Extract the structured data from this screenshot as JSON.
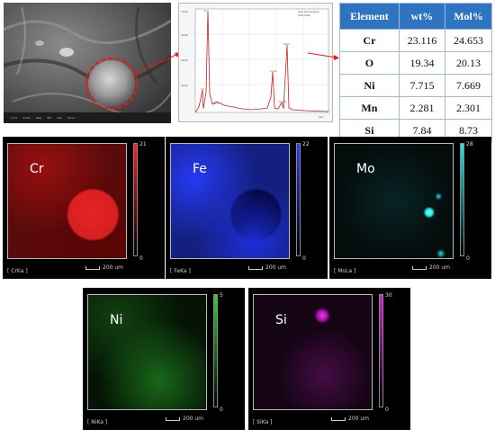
{
  "spectrum": {
    "legend": [
      "Rectangle1",
      "Peak"
    ],
    "y_ticks": [
      "7000",
      "6000",
      "4000",
      "2000",
      "1000"
    ],
    "peaks": [
      "Si",
      "CrL",
      "OKa",
      "CrKa",
      "MnKa",
      "CrKb",
      "NiKa"
    ],
    "x_unit": "keV"
  },
  "table": {
    "headers": [
      "Element",
      "wt%",
      "Mol%"
    ],
    "rows": [
      {
        "element": "Cr",
        "wt": "23.116",
        "mol": "24.653"
      },
      {
        "element": "O",
        "wt": "19.34",
        "mol": "20.13"
      },
      {
        "element": "Ni",
        "wt": "7.715",
        "mol": "7.669"
      },
      {
        "element": "Mn",
        "wt": "2.281",
        "mol": "2.301"
      },
      {
        "element": "Si",
        "wt": "7.84",
        "mol": "8.73"
      }
    ]
  },
  "sem": {
    "footer": [
      "AccV",
      "Probe",
      "Mag",
      "WD",
      "Det",
      "50um"
    ]
  },
  "maps": [
    {
      "element": "Cr",
      "max": "21",
      "min": "0",
      "line": "[ CrKa ]",
      "scale": "200 um",
      "color": "#ff1e1e"
    },
    {
      "element": "Fe",
      "max": "22",
      "min": "0",
      "line": "[ FeKa ]",
      "scale": "200 um",
      "color": "#2a3cff"
    },
    {
      "element": "Mo",
      "max": "28",
      "min": "0",
      "line": "[ MoLa ]",
      "scale": "200 um",
      "color": "#1ee6e6"
    },
    {
      "element": "Ni",
      "max": "5",
      "min": "0",
      "line": "[ NiKa ]",
      "scale": "200 um",
      "color": "#29d629"
    },
    {
      "element": "Si",
      "max": "30",
      "min": "0",
      "line": "[ SiKa ]",
      "scale": "200 um",
      "color": "#d01ed0"
    }
  ]
}
